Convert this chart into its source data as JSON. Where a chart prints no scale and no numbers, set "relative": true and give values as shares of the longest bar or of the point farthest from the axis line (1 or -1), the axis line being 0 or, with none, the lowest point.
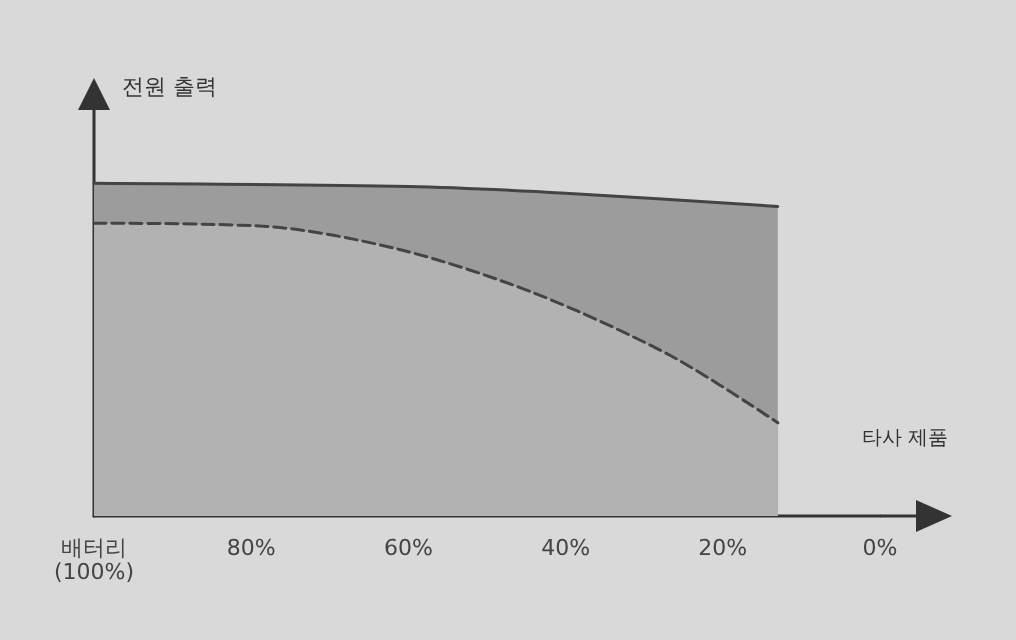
{
  "chart_data": {
    "type": "area",
    "ylabel": "전원 출력",
    "relative": true,
    "xlim": [
      100,
      0
    ],
    "xticks": [
      {
        "value": 100,
        "label": "배터리\n(100%)"
      },
      {
        "value": 80,
        "label": "80%"
      },
      {
        "value": 60,
        "label": "60%"
      },
      {
        "value": 40,
        "label": "40%"
      },
      {
        "value": 20,
        "label": "20%"
      },
      {
        "value": 0,
        "label": "0%"
      }
    ],
    "series": [
      {
        "color": "#9c9c9c",
        "x": [
          100,
          60,
          40,
          13
        ],
        "values": [
          1,
          0.99,
          0.97,
          0.93
        ],
        "line_style": "solid"
      },
      {
        "name": "타사 제품",
        "color": "#b2b2b2",
        "x": [
          100,
          78,
          61,
          44,
          26.5,
          13
        ],
        "values": [
          0.88,
          0.87,
          0.8,
          0.67,
          0.48,
          0.28
        ],
        "line_style": "dashed"
      }
    ],
    "grid": false,
    "legend": false,
    "marker": "none"
  }
}
